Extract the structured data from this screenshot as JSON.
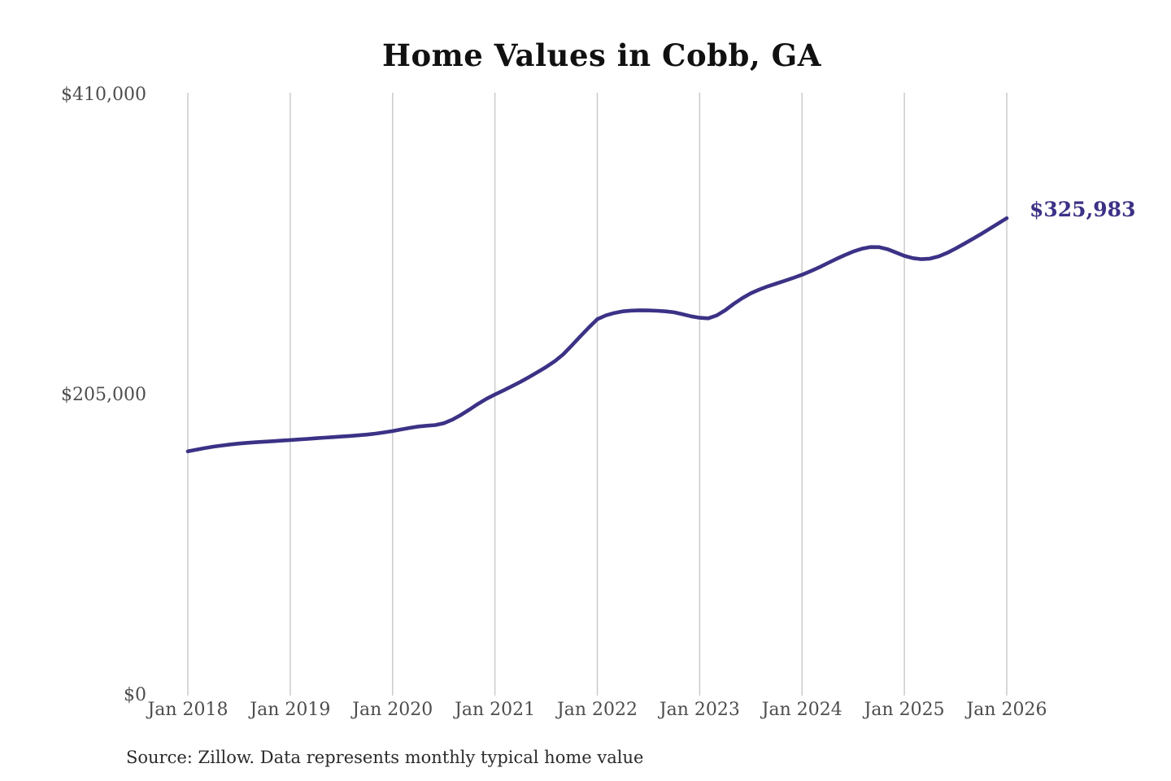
{
  "chart_data": {
    "type": "line",
    "title": "Home Values in Cobb, GA",
    "end_label": "$325,983",
    "end_value": 325983,
    "xlabel": "",
    "ylabel": "",
    "ylim": [
      0,
      410000
    ],
    "grid": "vertical-only",
    "line_color": "#3b3286",
    "grid_color": "#cbcbcb",
    "x_tick_labels": [
      "Jan 2018",
      "Jan 2019",
      "Jan 2020",
      "Jan 2021",
      "Jan 2022",
      "Jan 2023",
      "Jan 2024",
      "Jan 2025",
      "Jan 2026"
    ],
    "y_ticks": [
      {
        "label": "$410,000",
        "value": 410000
      },
      {
        "label": "$205,000",
        "value": 205000
      },
      {
        "label": "$0",
        "value": 0
      }
    ],
    "frequency": "monthly",
    "x_start": "Jan 2018",
    "x_end": "Jan 2026",
    "series": [
      {
        "name": "Typical home value",
        "monthly_values": [
          166800,
          167900,
          169000,
          170000,
          170800,
          171500,
          172100,
          172600,
          173000,
          173400,
          173700,
          174100,
          174500,
          174900,
          175300,
          175700,
          176100,
          176500,
          176900,
          177300,
          177700,
          178200,
          178900,
          179700,
          180600,
          181700,
          182800,
          183700,
          184300,
          184700,
          186000,
          188400,
          191600,
          195300,
          199100,
          202600,
          205600,
          208400,
          211300,
          214300,
          217500,
          220900,
          224400,
          228300,
          233000,
          239000,
          245200,
          251300,
          257000,
          259600,
          261300,
          262400,
          262900,
          263100,
          263000,
          262800,
          262400,
          261700,
          260400,
          259000,
          258000,
          257600,
          259600,
          263100,
          267500,
          271400,
          274700,
          277300,
          279500,
          281400,
          283300,
          285300,
          287400,
          289800,
          292400,
          295300,
          298100,
          300800,
          303200,
          305100,
          306300,
          306200,
          304900,
          302600,
          300300,
          298700,
          298000,
          298400,
          299900,
          302300,
          305300,
          308500,
          311800,
          315200,
          318800,
          322400,
          325983
        ]
      }
    ]
  },
  "footer": {
    "source_note": "Source: Zillow. Data represents monthly typical home value"
  }
}
